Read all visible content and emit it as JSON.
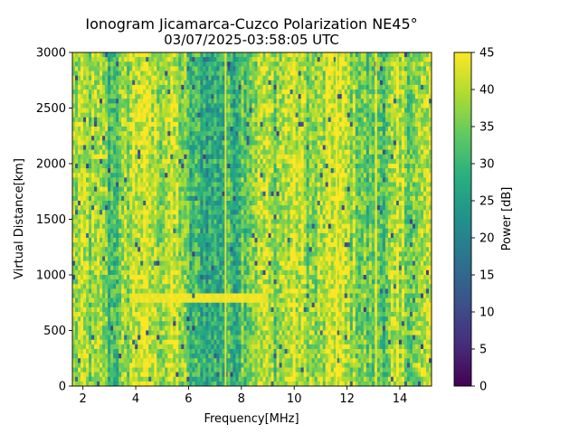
{
  "chart_data": {
    "type": "heatmap",
    "title": "Ionogram Jicamarca-Cuzco Polarization NE45°",
    "subtitle": "03/07/2025-03:58:05 UTC",
    "xlabel": "Frequency[MHz]",
    "ylabel": "Virtual Distance[km]",
    "xlim": [
      1.6,
      15.2
    ],
    "ylim": [
      0,
      3000
    ],
    "xticks": [
      2,
      4,
      6,
      8,
      10,
      12,
      14
    ],
    "yticks": [
      0,
      500,
      1000,
      1500,
      2000,
      2500,
      3000
    ],
    "colorbar": {
      "label": "Power [dB]",
      "range": [
        0,
        45
      ],
      "ticks": [
        0,
        5,
        10,
        15,
        20,
        25,
        30,
        35,
        40,
        45
      ],
      "colormap": "viridis"
    },
    "grid": false,
    "mean_power_by_frequency": {
      "frequency_mhz": [
        1.6,
        2.0,
        2.4,
        2.8,
        3.0,
        3.4,
        3.8,
        4.2,
        4.6,
        5.0,
        5.4,
        5.8,
        6.0,
        6.4,
        6.8,
        7.0,
        7.4,
        7.8,
        8.0,
        8.4,
        8.8,
        9.2,
        9.6,
        10.0,
        10.4,
        10.8,
        11.2,
        11.6,
        12.0,
        12.4,
        12.8,
        13.0,
        13.4,
        13.8,
        14.2,
        14.6,
        15.0
      ],
      "power_db": [
        38,
        39,
        37,
        38,
        31,
        34,
        40,
        43,
        40,
        39,
        41,
        37,
        30,
        29,
        27,
        28,
        30,
        29,
        34,
        37,
        40,
        37,
        39,
        42,
        38,
        36,
        40,
        43,
        39,
        37,
        33,
        35,
        34,
        38,
        37,
        36,
        39
      ]
    },
    "notable_features": [
      {
        "type": "horizontal_trace",
        "virtual_distance_km": 800,
        "frequency_range_mhz": [
          3.8,
          9.0
        ],
        "power_db": 45
      },
      {
        "type": "vertical_line",
        "frequency_mhz": 7.4,
        "power_db": 45
      },
      {
        "type": "vertical_line",
        "frequency_mhz": 11.6,
        "power_db": 45
      },
      {
        "type": "vertical_line",
        "frequency_mhz": 13.1,
        "power_db": 45
      }
    ]
  }
}
